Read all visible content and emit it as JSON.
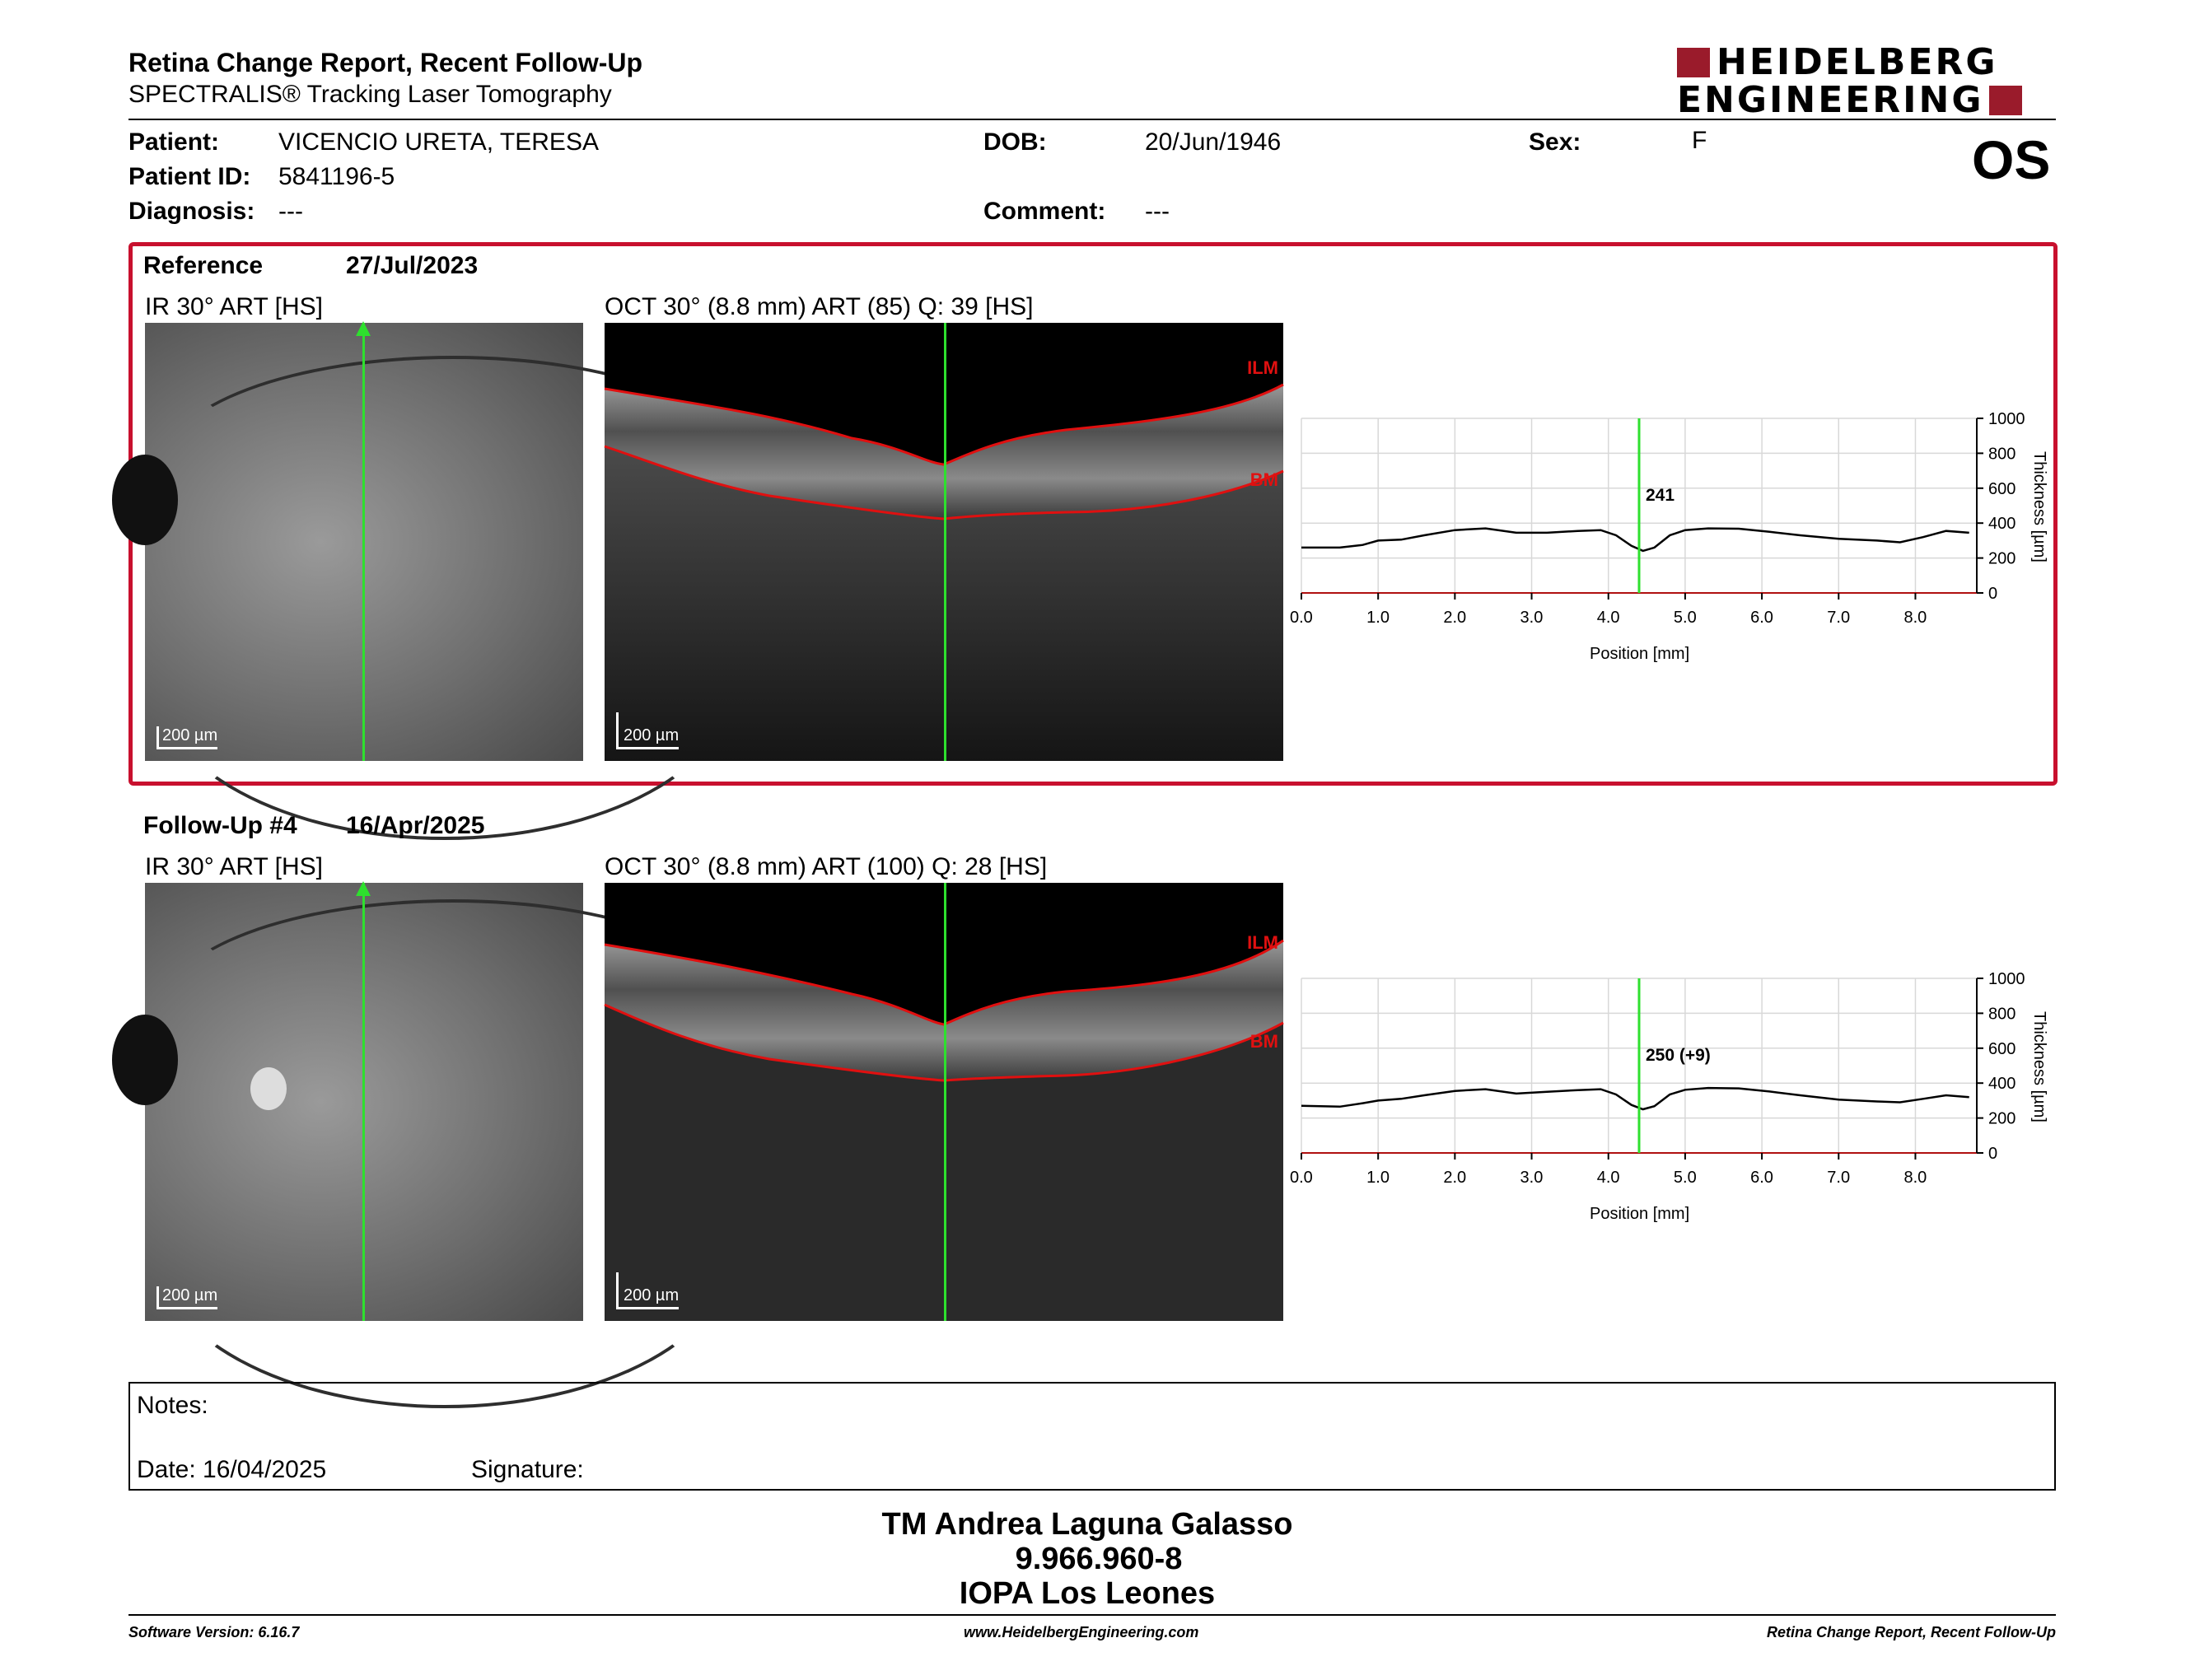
{
  "header": {
    "title": "Retina Change Report, Recent Follow-Up",
    "subtitle": "SPECTRALIS® Tracking Laser Tomography",
    "brand_line1": "HEIDELBERG",
    "brand_line2": "ENGINEERING",
    "brand_color": "#9a1b2b",
    "eye": "OS"
  },
  "patient": {
    "patient_label": "Patient:",
    "patient_value": "VICENCIO URETA, TERESA",
    "id_label": "Patient ID:",
    "id_value": "5841196-5",
    "diag_label": "Diagnosis:",
    "diag_value": "---",
    "dob_label": "DOB:",
    "dob_value": "20/Jun/1946",
    "comment_label": "Comment:",
    "comment_value": "---",
    "sex_label": "Sex:",
    "sex_value": "F"
  },
  "reference": {
    "label": "Reference",
    "date": "27/Jul/2023",
    "ir_title": "IR 30° ART [HS]",
    "oct_title": "OCT 30° (8.8 mm) ART (85) Q: 39 [HS]",
    "ir_scale": "200 µm",
    "oct_scale": "200 µm",
    "ilm": "ILM",
    "bm": "BM",
    "marker_label": "241"
  },
  "followup": {
    "label": "Follow-Up #4",
    "date": "16/Apr/2025",
    "ir_title": "IR 30° ART [HS]",
    "oct_title": "OCT 30° (8.8 mm) ART (100) Q: 28 [HS]",
    "ir_scale": "200 µm",
    "oct_scale": "200 µm",
    "ilm": "ILM",
    "bm": "BM",
    "marker_label": "250 (+9)"
  },
  "chart_data": [
    {
      "type": "line",
      "xlabel": "Position [mm]",
      "ylabel": "Thickness [µm]",
      "xlim": [
        0,
        8.8
      ],
      "ylim": [
        0,
        1000
      ],
      "x_ticks": [
        "0.0",
        "1.0",
        "2.0",
        "3.0",
        "4.0",
        "5.0",
        "6.0",
        "7.0",
        "8.0"
      ],
      "y_ticks": [
        "0",
        "200",
        "400",
        "600",
        "800",
        "1000"
      ],
      "marker_x": 4.4,
      "marker_label": "241",
      "grid": true,
      "series": [
        {
          "x": [
            0.0,
            0.5,
            0.8,
            1.0,
            1.3,
            1.6,
            2.0,
            2.4,
            2.8,
            3.2,
            3.6,
            3.9,
            4.1,
            4.3,
            4.45,
            4.6,
            4.8,
            5.0,
            5.3,
            5.7,
            6.1,
            6.5,
            7.0,
            7.5,
            7.8,
            8.1,
            8.4,
            8.7
          ],
          "values": [
            260,
            260,
            275,
            300,
            305,
            330,
            360,
            370,
            345,
            345,
            355,
            360,
            330,
            270,
            241,
            260,
            330,
            360,
            370,
            368,
            350,
            330,
            310,
            300,
            290,
            320,
            355,
            345
          ],
          "color": "#000000"
        }
      ]
    },
    {
      "type": "line",
      "xlabel": "Position [mm]",
      "ylabel": "Thickness [µm]",
      "xlim": [
        0,
        8.8
      ],
      "ylim": [
        0,
        1000
      ],
      "x_ticks": [
        "0.0",
        "1.0",
        "2.0",
        "3.0",
        "4.0",
        "5.0",
        "6.0",
        "7.0",
        "8.0"
      ],
      "y_ticks": [
        "0",
        "200",
        "400",
        "600",
        "800",
        "1000"
      ],
      "marker_x": 4.4,
      "marker_label": "250 (+9)",
      "grid": true,
      "series": [
        {
          "x": [
            0.0,
            0.5,
            0.8,
            1.0,
            1.3,
            1.6,
            2.0,
            2.4,
            2.8,
            3.2,
            3.6,
            3.9,
            4.1,
            4.3,
            4.45,
            4.6,
            4.8,
            5.0,
            5.3,
            5.7,
            6.1,
            6.5,
            7.0,
            7.5,
            7.8,
            8.1,
            8.4,
            8.7
          ],
          "values": [
            270,
            265,
            285,
            300,
            310,
            330,
            355,
            365,
            340,
            350,
            360,
            365,
            335,
            275,
            250,
            268,
            335,
            362,
            372,
            370,
            352,
            330,
            305,
            295,
            290,
            310,
            330,
            320
          ],
          "color": "#000000"
        }
      ]
    }
  ],
  "notes": {
    "notes_label": "Notes:",
    "date_label": "Date: 16/04/2025",
    "signature_label": "Signature:"
  },
  "signature_block": {
    "name": "TM Andrea Laguna Galasso",
    "id": "9.966.960-8",
    "org": "IOPA Los Leones"
  },
  "footer": {
    "software": "Software Version: 6.16.7",
    "website": "www.HeidelbergEngineering.com",
    "report_name": "Retina Change Report, Recent Follow-Up"
  }
}
